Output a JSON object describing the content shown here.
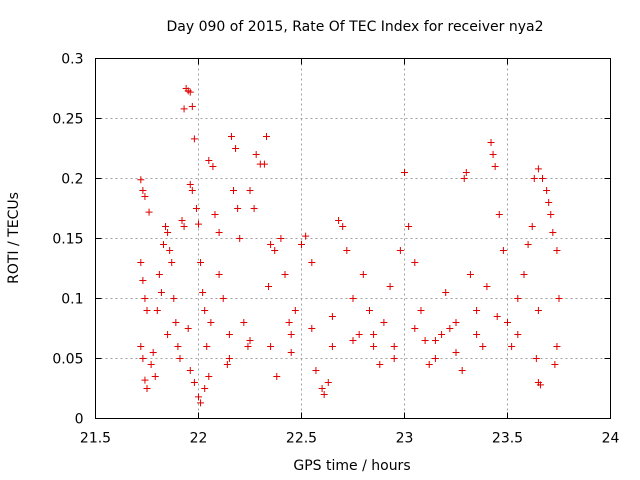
{
  "chart_data": {
    "type": "scatter",
    "title": "Day 090 of 2015, Rate Of TEC Index for receiver nya2",
    "xlabel": "GPS time / hours",
    "ylabel": "ROTI / TECUs",
    "xlim": [
      21.5,
      24
    ],
    "ylim": [
      0,
      0.3
    ],
    "xticks": [
      21.5,
      22,
      22.5,
      23,
      23.5,
      24
    ],
    "xtick_labels": [
      "21.5",
      "22",
      "22.5",
      "23",
      "23.5",
      "24"
    ],
    "yticks": [
      0,
      0.05,
      0.1,
      0.15,
      0.2,
      0.25,
      0.3
    ],
    "ytick_labels": [
      "0",
      "0.05",
      "0.1",
      "0.15",
      "0.2",
      "0.25",
      "0.3"
    ],
    "grid": true,
    "marker": "plus",
    "color": "#e00000",
    "series": [
      {
        "name": "ROTI",
        "points": [
          [
            21.72,
            0.199
          ],
          [
            21.73,
            0.19
          ],
          [
            21.74,
            0.185
          ],
          [
            21.76,
            0.172
          ],
          [
            21.72,
            0.13
          ],
          [
            21.73,
            0.115
          ],
          [
            21.74,
            0.1
          ],
          [
            21.75,
            0.09
          ],
          [
            21.72,
            0.06
          ],
          [
            21.73,
            0.05
          ],
          [
            21.74,
            0.032
          ],
          [
            21.75,
            0.025
          ],
          [
            21.77,
            0.045
          ],
          [
            21.78,
            0.055
          ],
          [
            21.79,
            0.035
          ],
          [
            21.8,
            0.09
          ],
          [
            21.81,
            0.12
          ],
          [
            21.82,
            0.105
          ],
          [
            21.83,
            0.145
          ],
          [
            21.84,
            0.16
          ],
          [
            21.85,
            0.155
          ],
          [
            21.86,
            0.14
          ],
          [
            21.87,
            0.13
          ],
          [
            21.88,
            0.1
          ],
          [
            21.89,
            0.08
          ],
          [
            21.9,
            0.06
          ],
          [
            21.91,
            0.05
          ],
          [
            21.92,
            0.165
          ],
          [
            21.93,
            0.16
          ],
          [
            21.94,
            0.275
          ],
          [
            21.95,
            0.273
          ],
          [
            21.96,
            0.272
          ],
          [
            21.93,
            0.258
          ],
          [
            21.97,
            0.26
          ],
          [
            21.98,
            0.233
          ],
          [
            21.96,
            0.195
          ],
          [
            21.97,
            0.19
          ],
          [
            21.99,
            0.175
          ],
          [
            22.0,
            0.162
          ],
          [
            22.01,
            0.13
          ],
          [
            22.02,
            0.105
          ],
          [
            22.03,
            0.09
          ],
          [
            21.96,
            0.04
          ],
          [
            21.98,
            0.03
          ],
          [
            22.0,
            0.018
          ],
          [
            22.01,
            0.013
          ],
          [
            22.03,
            0.025
          ],
          [
            22.05,
            0.035
          ],
          [
            22.04,
            0.06
          ],
          [
            22.06,
            0.08
          ],
          [
            22.05,
            0.215
          ],
          [
            22.07,
            0.21
          ],
          [
            22.08,
            0.17
          ],
          [
            22.1,
            0.155
          ],
          [
            22.1,
            0.12
          ],
          [
            22.12,
            0.1
          ],
          [
            22.14,
            0.045
          ],
          [
            22.15,
            0.07
          ],
          [
            22.16,
            0.235
          ],
          [
            22.18,
            0.225
          ],
          [
            22.17,
            0.19
          ],
          [
            22.19,
            0.175
          ],
          [
            22.2,
            0.15
          ],
          [
            22.22,
            0.08
          ],
          [
            22.24,
            0.06
          ],
          [
            22.25,
            0.19
          ],
          [
            22.27,
            0.175
          ],
          [
            22.28,
            0.22
          ],
          [
            22.3,
            0.212
          ],
          [
            22.32,
            0.212
          ],
          [
            22.33,
            0.235
          ],
          [
            22.34,
            0.11
          ],
          [
            22.35,
            0.145
          ],
          [
            22.37,
            0.14
          ],
          [
            22.38,
            0.035
          ],
          [
            22.4,
            0.15
          ],
          [
            22.42,
            0.12
          ],
          [
            22.44,
            0.08
          ],
          [
            22.45,
            0.055
          ],
          [
            22.47,
            0.09
          ],
          [
            22.5,
            0.145
          ],
          [
            22.52,
            0.152
          ],
          [
            22.55,
            0.13
          ],
          [
            22.57,
            0.04
          ],
          [
            22.6,
            0.025
          ],
          [
            22.61,
            0.02
          ],
          [
            22.63,
            0.03
          ],
          [
            22.65,
            0.06
          ],
          [
            22.68,
            0.165
          ],
          [
            22.7,
            0.16
          ],
          [
            22.72,
            0.14
          ],
          [
            22.75,
            0.1
          ],
          [
            22.78,
            0.07
          ],
          [
            22.8,
            0.12
          ],
          [
            22.83,
            0.09
          ],
          [
            22.85,
            0.06
          ],
          [
            22.88,
            0.045
          ],
          [
            22.9,
            0.08
          ],
          [
            22.93,
            0.11
          ],
          [
            22.95,
            0.05
          ],
          [
            22.98,
            0.14
          ],
          [
            23.0,
            0.205
          ],
          [
            23.02,
            0.16
          ],
          [
            23.05,
            0.13
          ],
          [
            23.08,
            0.09
          ],
          [
            23.1,
            0.065
          ],
          [
            23.12,
            0.045
          ],
          [
            23.15,
            0.05
          ],
          [
            23.18,
            0.07
          ],
          [
            23.2,
            0.105
          ],
          [
            23.22,
            0.075
          ],
          [
            23.25,
            0.055
          ],
          [
            23.28,
            0.04
          ],
          [
            23.29,
            0.2
          ],
          [
            23.3,
            0.205
          ],
          [
            23.32,
            0.12
          ],
          [
            23.35,
            0.09
          ],
          [
            23.38,
            0.06
          ],
          [
            23.4,
            0.11
          ],
          [
            23.42,
            0.23
          ],
          [
            23.43,
            0.22
          ],
          [
            23.44,
            0.21
          ],
          [
            23.46,
            0.17
          ],
          [
            23.48,
            0.14
          ],
          [
            23.5,
            0.08
          ],
          [
            23.52,
            0.06
          ],
          [
            23.55,
            0.1
          ],
          [
            23.58,
            0.12
          ],
          [
            23.6,
            0.145
          ],
          [
            23.62,
            0.16
          ],
          [
            23.63,
            0.2
          ],
          [
            23.65,
            0.208
          ],
          [
            23.67,
            0.2
          ],
          [
            23.69,
            0.19
          ],
          [
            23.7,
            0.18
          ],
          [
            23.71,
            0.17
          ],
          [
            23.72,
            0.155
          ],
          [
            23.74,
            0.14
          ],
          [
            23.75,
            0.1
          ],
          [
            23.74,
            0.06
          ],
          [
            23.73,
            0.045
          ],
          [
            23.65,
            0.03
          ],
          [
            23.66,
            0.028
          ],
          [
            23.64,
            0.05
          ],
          [
            22.35,
            0.06
          ],
          [
            22.45,
            0.07
          ],
          [
            22.55,
            0.075
          ],
          [
            22.65,
            0.085
          ],
          [
            22.75,
            0.065
          ],
          [
            22.85,
            0.07
          ],
          [
            22.95,
            0.06
          ],
          [
            23.05,
            0.075
          ],
          [
            23.15,
            0.065
          ],
          [
            23.25,
            0.08
          ],
          [
            23.35,
            0.07
          ],
          [
            23.45,
            0.085
          ],
          [
            23.55,
            0.07
          ],
          [
            23.65,
            0.09
          ],
          [
            22.15,
            0.05
          ],
          [
            22.25,
            0.065
          ],
          [
            21.85,
            0.07
          ],
          [
            21.95,
            0.075
          ]
        ]
      }
    ]
  }
}
